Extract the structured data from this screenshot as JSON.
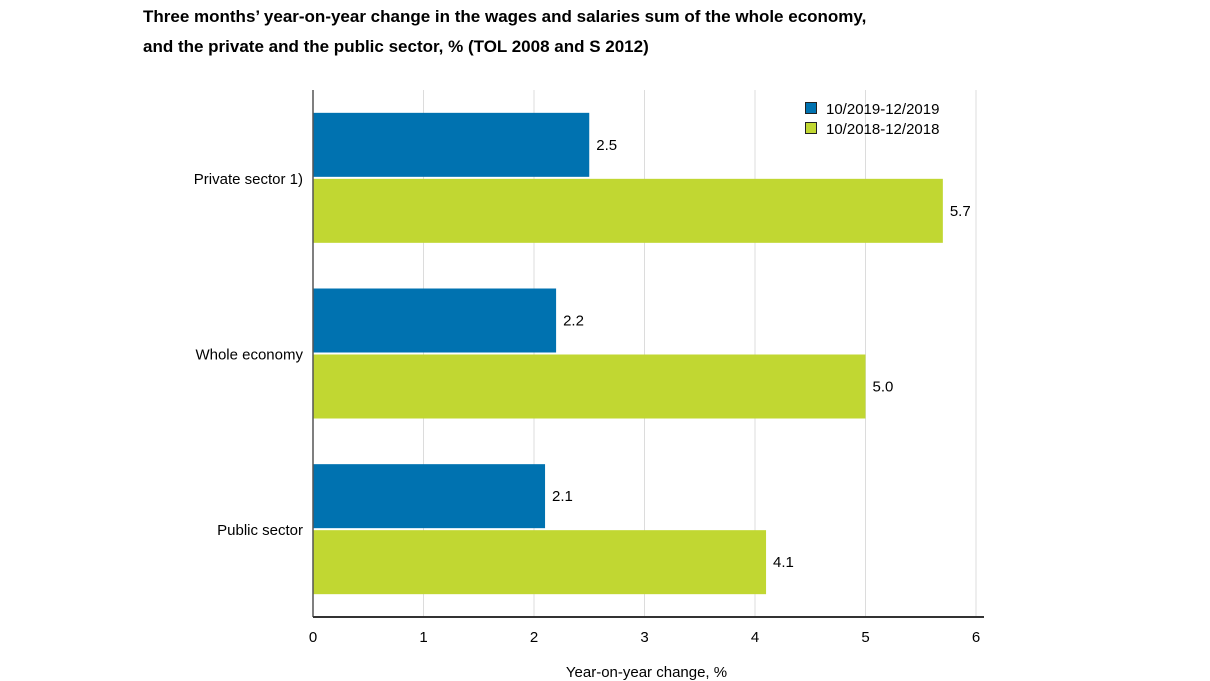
{
  "chart_data": {
    "type": "bar",
    "orientation": "horizontal",
    "title_lines": [
      "Three months’ year-on-year change in the wages and salaries sum of the whole economy,",
      "and the private and the public sector, % (TOL 2008 and S 2012)"
    ],
    "categories": [
      "Private sector 1)",
      "Whole economy",
      "Public sector"
    ],
    "series": [
      {
        "name": "10/2019-12/2019",
        "color": "#0072b0",
        "values": [
          2.5,
          2.2,
          2.1
        ],
        "labels": [
          "2.5",
          "2.2",
          "2.1"
        ]
      },
      {
        "name": "10/2018-12/2018",
        "color": "#c1d732",
        "values": [
          5.7,
          5.0,
          4.1
        ],
        "labels": [
          "5.7",
          "5.0",
          "4.1"
        ]
      }
    ],
    "xlabel": "Year-on-year change, %",
    "xlim": [
      0,
      6
    ],
    "xticks": [
      "0",
      "1",
      "2",
      "3",
      "4",
      "5",
      "6"
    ],
    "grid": true,
    "legend_position": "top-right"
  }
}
